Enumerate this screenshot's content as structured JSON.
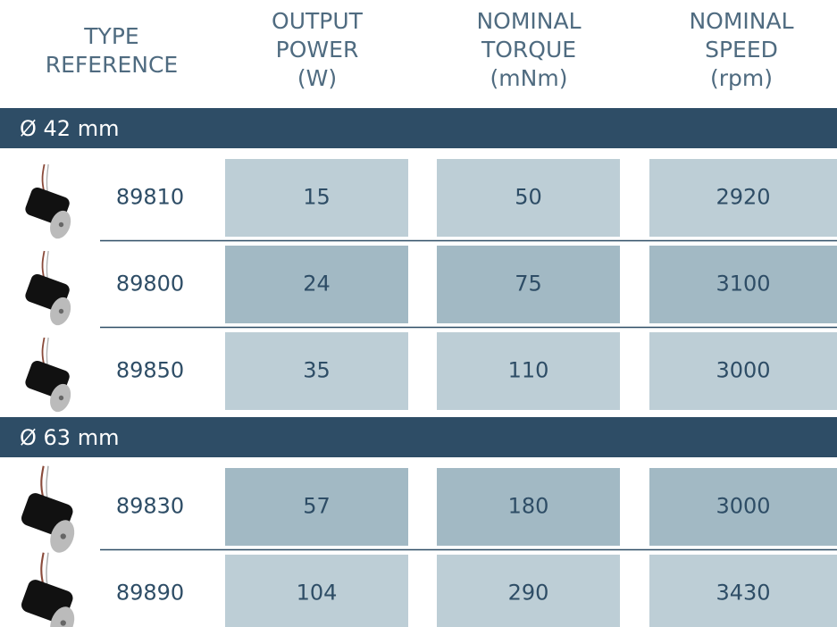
{
  "headers": [
    [
      "TYPE",
      "REFERENCE"
    ],
    [
      "OUTPUT",
      "POWER",
      "(W)"
    ],
    [
      "NOMINAL",
      "TORQUE",
      "(mNm)"
    ],
    [
      "NOMINAL",
      "SPEED",
      "(rpm)"
    ]
  ],
  "groups": [
    {
      "label": "Ø 42 mm",
      "rows": [
        {
          "reference": "89810",
          "cells": [
            15,
            50,
            2920
          ]
        },
        {
          "reference": "89800",
          "cells": [
            24,
            75,
            3100
          ]
        },
        {
          "reference": "89850",
          "cells": [
            35,
            110,
            3000
          ]
        }
      ]
    },
    {
      "label": "Ø 63 mm",
      "rows": [
        {
          "reference": "89830",
          "cells": [
            57,
            180,
            3000
          ]
        },
        {
          "reference": "89890",
          "cells": [
            104,
            290,
            3430
          ]
        }
      ]
    }
  ]
}
